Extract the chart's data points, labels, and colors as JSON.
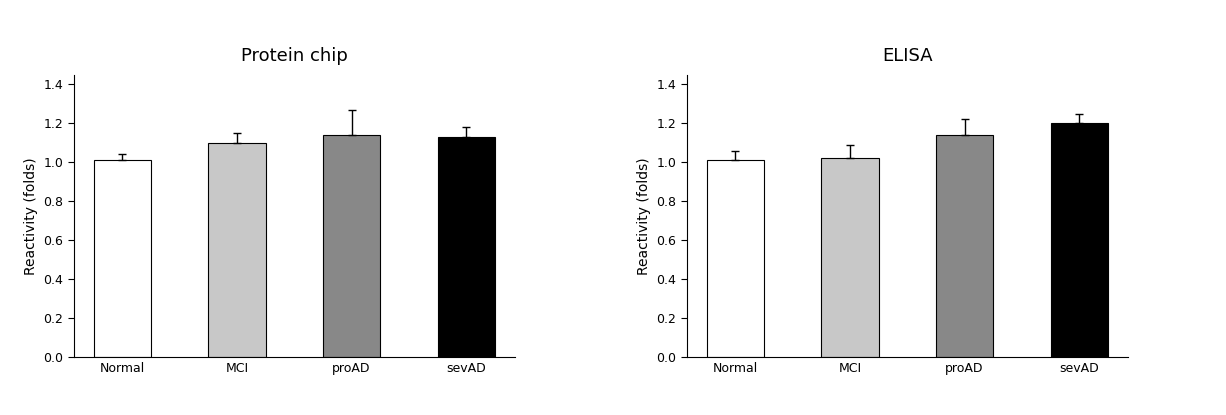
{
  "chart1": {
    "title": "Protein chip",
    "categories": [
      "Normal",
      "MCI",
      "proAD",
      "sevAD"
    ],
    "values": [
      1.01,
      1.1,
      1.14,
      1.13
    ],
    "errors": [
      0.03,
      0.05,
      0.13,
      0.05
    ],
    "bar_colors": [
      "#ffffff",
      "#c8c8c8",
      "#888888",
      "#000000"
    ],
    "bar_edgecolors": [
      "#000000",
      "#000000",
      "#000000",
      "#000000"
    ],
    "ylabel": "Reactivity (folds)",
    "ylim": [
      0,
      1.45
    ],
    "yticks": [
      0.0,
      0.2,
      0.4,
      0.6,
      0.8,
      1.0,
      1.2,
      1.4
    ]
  },
  "chart2": {
    "title": "ELISA",
    "categories": [
      "Normal",
      "MCI",
      "proAD",
      "sevAD"
    ],
    "values": [
      1.01,
      1.02,
      1.14,
      1.2
    ],
    "errors": [
      0.05,
      0.07,
      0.08,
      0.05
    ],
    "bar_colors": [
      "#ffffff",
      "#c8c8c8",
      "#888888",
      "#000000"
    ],
    "bar_edgecolors": [
      "#000000",
      "#000000",
      "#000000",
      "#000000"
    ],
    "ylabel": "Reactivity (folds)",
    "ylim": [
      0,
      1.45
    ],
    "yticks": [
      0.0,
      0.2,
      0.4,
      0.6,
      0.8,
      1.0,
      1.2,
      1.4
    ]
  },
  "figure": {
    "bg_color": "#ffffff",
    "bar_width": 0.5,
    "title_fontsize": 13,
    "label_fontsize": 10,
    "tick_fontsize": 9,
    "capsize": 3
  }
}
